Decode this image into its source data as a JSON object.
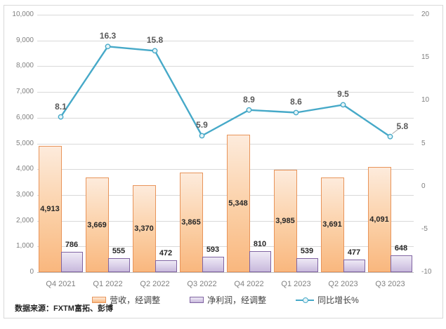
{
  "source_note": "数据来源：FXTM富拓、彭博",
  "chart_data": {
    "type": "bar",
    "subtype": "combo-clustered-bar-with-line",
    "categories": [
      "Q4 2021",
      "Q1 2022",
      "Q2 2022",
      "Q3 2022",
      "Q4 2022",
      "Q1 2023",
      "Q2 2023",
      "Q3 2023"
    ],
    "series": [
      {
        "name": "营收，经调整",
        "type": "bar",
        "axis": "left",
        "values": [
          4913,
          3669,
          3370,
          3865,
          5348,
          3985,
          3691,
          4091
        ]
      },
      {
        "name": "净利润，经调整",
        "type": "bar",
        "axis": "left",
        "values": [
          786,
          555,
          472,
          593,
          810,
          539,
          477,
          648
        ]
      },
      {
        "name": "同比增长%",
        "type": "line",
        "axis": "right",
        "values": [
          8.1,
          16.3,
          15.8,
          5.9,
          8.9,
          8.6,
          9.5,
          5.8
        ]
      }
    ],
    "title": "",
    "xlabel": "",
    "ylabel": "",
    "left_axis": {
      "min": 0,
      "max": 10000,
      "step": 1000
    },
    "right_axis": {
      "min": -10,
      "max": 20,
      "step": 5
    },
    "grid": true,
    "legend_position": "bottom",
    "colors": {
      "revenue_fill_top": "#FDEBDC",
      "revenue_fill_bottom": "#F9B77E",
      "revenue_border": "#E8945A",
      "profit_fill_top": "#EEE9F5",
      "profit_fill_bottom": "#C8B9DC",
      "profit_border": "#8064A2",
      "line": "#46A9C8",
      "gridline": "#D9D9D9",
      "axis_text": "#7F7F7F",
      "bar_label": "#262626",
      "line_label": "#595959"
    }
  }
}
